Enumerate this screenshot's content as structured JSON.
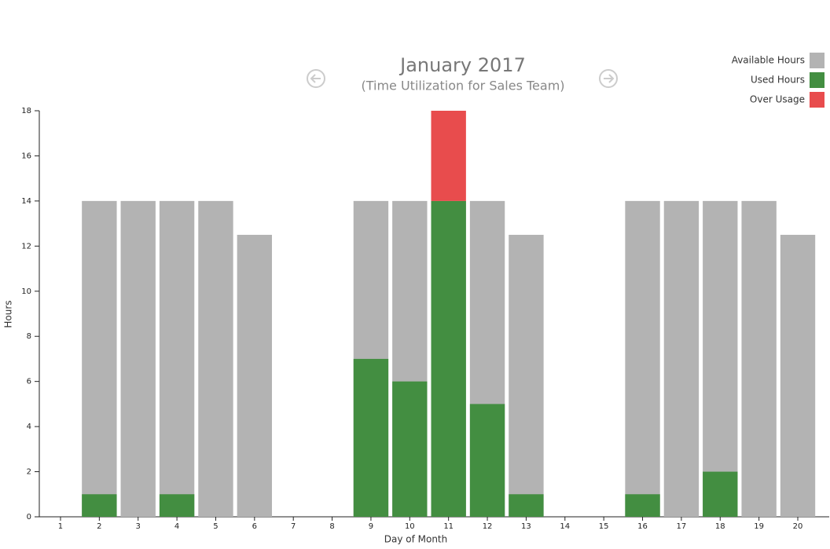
{
  "chart_data": {
    "type": "bar",
    "title": "January 2017",
    "subtitle": "(Time Utilization for Sales Team)",
    "x_label": "Day of Month",
    "y_label": "Hours",
    "categories": [
      "1",
      "2",
      "3",
      "4",
      "5",
      "6",
      "7",
      "8",
      "9",
      "10",
      "11",
      "12",
      "13",
      "14",
      "15",
      "16",
      "17",
      "18",
      "19",
      "20"
    ],
    "series": [
      {
        "name": "Available Hours",
        "color": "#b3b3b3",
        "values": [
          0,
          14,
          14,
          14,
          14,
          12.5,
          0,
          0,
          14,
          14,
          14,
          14,
          12.5,
          0,
          0,
          14,
          14,
          14,
          14,
          12.5
        ]
      },
      {
        "name": "Used Hours",
        "color": "#438e41",
        "values": [
          0,
          1,
          0,
          1,
          0,
          0,
          0,
          0,
          7,
          6,
          14,
          5,
          1,
          0,
          0,
          1,
          0,
          2,
          0,
          0
        ]
      },
      {
        "name": "Over Usage",
        "color": "#e84c4d",
        "values": [
          0,
          0,
          0,
          0,
          0,
          0,
          0,
          0,
          0,
          0,
          4,
          0,
          0,
          0,
          0,
          0,
          0,
          0,
          0,
          0
        ]
      }
    ],
    "ylim": [
      0,
      18
    ],
    "yticks": [
      0,
      2,
      4,
      6,
      8,
      10,
      12,
      14,
      16,
      18
    ],
    "legend": "top-right"
  }
}
